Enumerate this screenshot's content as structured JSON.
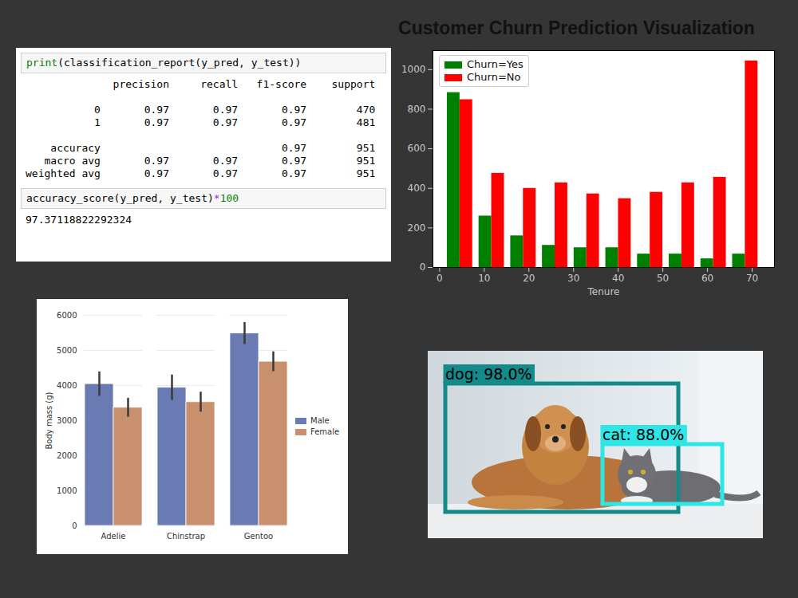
{
  "chart_data": [
    {
      "type": "histogram",
      "title": "Customer Churn Prediction Visualization",
      "x_label": "Tenure",
      "bins": [
        1,
        8.1,
        15.2,
        22.3,
        29.4,
        36.5,
        43.6,
        50.7,
        57.8,
        64.9,
        72
      ],
      "series": [
        {
          "name": "Churn=Yes",
          "color": "#008000",
          "values": [
            884,
            260,
            160,
            112,
            100,
            100,
            68,
            68,
            44,
            68
          ]
        },
        {
          "name": "Churn=No",
          "color": "#ff0000",
          "values": [
            848,
            476,
            400,
            428,
            372,
            348,
            380,
            428,
            456,
            1044
          ]
        }
      ],
      "xlim": [
        -1.5,
        75
      ],
      "xticks": [
        0,
        10,
        20,
        30,
        40,
        50,
        60,
        70
      ],
      "ylim": [
        0,
        1096
      ],
      "yticks": [
        0,
        200,
        400,
        600,
        800,
        1000
      ],
      "legend": "upper left"
    },
    {
      "type": "bar",
      "y_label": "Body mass (g)",
      "categories": [
        "Adelie",
        "Chinstrap",
        "Gentoo"
      ],
      "series": [
        {
          "name": "Male",
          "color": "#6a7bb4",
          "values": [
            4043,
            3939,
            5485
          ],
          "errors": [
            347,
            362,
            313
          ]
        },
        {
          "name": "Female",
          "color": "#c8906c",
          "values": [
            3369,
            3527,
            4680
          ],
          "errors": [
            269,
            285,
            282
          ]
        }
      ],
      "ylim": [
        0,
        6000
      ],
      "yticks": [
        0,
        1000,
        2000,
        3000,
        4000,
        5000,
        6000
      ],
      "grid": true,
      "legend": "right"
    }
  ],
  "notebook": {
    "cells": [
      {
        "input": [
          {
            "text": "print",
            "color": "#008000"
          },
          {
            "text": "(classification_report(y_pred, y_test))"
          }
        ],
        "output": {
          "table": {
            "header": [
              "precision",
              "recall",
              "f1-score",
              "support"
            ],
            "rows": [
              [
                "0",
                "0.97",
                "0.97",
                "0.97",
                "470"
              ],
              [
                "1",
                "0.97",
                "0.97",
                "0.97",
                "481"
              ]
            ],
            "summary_rows": [
              [
                "accuracy",
                null,
                null,
                "0.97",
                "951"
              ],
              [
                "macro avg",
                "0.97",
                "0.97",
                "0.97",
                "951"
              ],
              [
                "weighted avg",
                "0.97",
                "0.97",
                "0.97",
                "951"
              ]
            ]
          }
        }
      },
      {
        "input": [
          {
            "text": "accuracy_score(y_pred, y_test)"
          },
          {
            "text": "*",
            "color": "#aa22ff"
          },
          {
            "text": "100",
            "color": "#008000"
          }
        ],
        "output": {
          "text": "97.37118822292324"
        }
      }
    ]
  },
  "detections": [
    {
      "label": "dog: 98.0%",
      "color": "#148a8a"
    },
    {
      "label": "cat: 88.0%",
      "color": "#2ee6e6"
    }
  ]
}
